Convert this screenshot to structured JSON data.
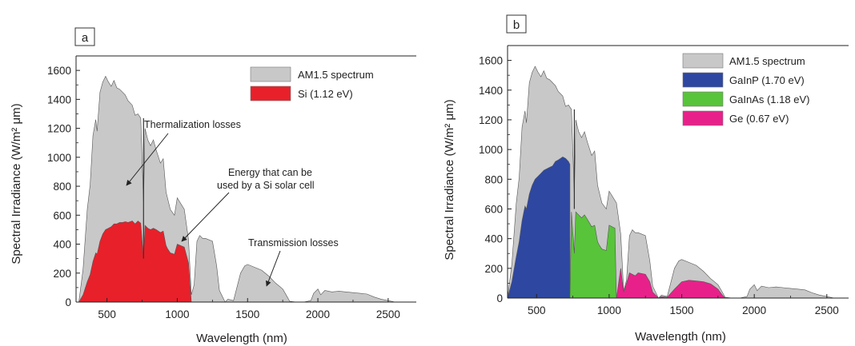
{
  "chart_data": [
    {
      "panel_label": "a",
      "type": "area",
      "xlabel": "Wavelength (nm)",
      "ylabel": "Spectral Irradiance (W/m² μm)",
      "xlim": [
        280,
        2700
      ],
      "ylim": [
        0,
        1700
      ],
      "x_ticks": [
        500,
        1000,
        1500,
        2000,
        2500
      ],
      "y_ticks": [
        0,
        200,
        400,
        600,
        800,
        1000,
        1200,
        1400,
        1600
      ],
      "legend_position": "top-right",
      "colors": {
        "spectrum": "#c8c8c8",
        "si": "#e8202a"
      },
      "series": [
        {
          "name": "AM1.5 spectrum",
          "x": [
            300,
            330,
            360,
            380,
            400,
            420,
            430,
            450,
            470,
            490,
            510,
            530,
            550,
            570,
            590,
            610,
            630,
            650,
            680,
            700,
            720,
            740,
            760,
            770,
            790,
            810,
            830,
            850,
            880,
            900,
            920,
            930,
            950,
            980,
            1000,
            1050,
            1080,
            1100,
            1120,
            1140,
            1160,
            1180,
            1200,
            1250,
            1280,
            1300,
            1340,
            1360,
            1400,
            1450,
            1480,
            1500,
            1550,
            1600,
            1650,
            1700,
            1750,
            1780,
            1800,
            1850,
            1900,
            1950,
            1970,
            2000,
            2020,
            2050,
            2100,
            2150,
            2200,
            2250,
            2300,
            2350,
            2400,
            2450,
            2500,
            2550
          ],
          "y": [
            0,
            230,
            640,
            810,
            1150,
            1260,
            1180,
            1450,
            1520,
            1560,
            1520,
            1490,
            1530,
            1480,
            1470,
            1450,
            1430,
            1390,
            1360,
            1290,
            1300,
            1270,
            690,
            1200,
            1120,
            1080,
            1120,
            1050,
            960,
            990,
            760,
            720,
            640,
            600,
            720,
            640,
            430,
            50,
            120,
            420,
            460,
            440,
            440,
            420,
            250,
            80,
            0,
            20,
            10,
            200,
            250,
            260,
            240,
            220,
            180,
            130,
            90,
            40,
            5,
            0,
            0,
            10,
            60,
            90,
            50,
            80,
            70,
            75,
            70,
            65,
            60,
            55,
            35,
            20,
            10,
            0
          ]
        },
        {
          "name": "Si (1.12 eV)",
          "x": [
            300,
            330,
            360,
            380,
            400,
            420,
            430,
            450,
            470,
            490,
            510,
            530,
            550,
            570,
            590,
            610,
            630,
            650,
            680,
            700,
            720,
            740,
            760,
            770,
            790,
            810,
            830,
            850,
            880,
            900,
            920,
            930,
            950,
            980,
            1000,
            1050,
            1080,
            1100
          ],
          "y": [
            0,
            50,
            140,
            190,
            280,
            340,
            330,
            420,
            470,
            500,
            510,
            520,
            540,
            540,
            550,
            550,
            555,
            550,
            560,
            540,
            560,
            545,
            300,
            530,
            510,
            500,
            510,
            500,
            480,
            490,
            390,
            370,
            340,
            330,
            400,
            380,
            270,
            0
          ]
        }
      ],
      "annotations": [
        {
          "text": "Thermalization losses"
        },
        {
          "text": "Energy that can be",
          "line2": "used by a Si solar cell"
        },
        {
          "text": "Transmission losses"
        }
      ]
    },
    {
      "panel_label": "b",
      "type": "area",
      "xlabel": "Wavelength (nm)",
      "ylabel": "Spectral Irradiance (W/m² μm)",
      "xlim": [
        300,
        2650
      ],
      "ylim": [
        0,
        1700
      ],
      "x_ticks": [
        500,
        1000,
        1500,
        2000,
        2500
      ],
      "y_ticks": [
        0,
        200,
        400,
        600,
        800,
        1000,
        1200,
        1400,
        1600
      ],
      "legend_position": "top-right",
      "colors": {
        "spectrum": "#c8c8c8",
        "gainp": "#2e47a0",
        "gainas": "#58c43a",
        "ge": "#e8218a"
      },
      "series": [
        {
          "name": "AM1.5 spectrum",
          "x": [
            300,
            330,
            360,
            380,
            400,
            420,
            430,
            450,
            470,
            490,
            510,
            530,
            550,
            570,
            590,
            610,
            630,
            650,
            680,
            700,
            720,
            740,
            760,
            770,
            790,
            810,
            830,
            850,
            880,
            900,
            920,
            930,
            950,
            980,
            1000,
            1050,
            1080,
            1100,
            1120,
            1140,
            1160,
            1180,
            1200,
            1250,
            1280,
            1300,
            1340,
            1360,
            1400,
            1450,
            1480,
            1500,
            1550,
            1600,
            1650,
            1700,
            1750,
            1780,
            1800,
            1850,
            1900,
            1950,
            1970,
            2000,
            2020,
            2050,
            2100,
            2150,
            2200,
            2250,
            2300,
            2350,
            2400,
            2450,
            2500,
            2550
          ],
          "y": [
            0,
            230,
            640,
            810,
            1150,
            1260,
            1180,
            1450,
            1520,
            1560,
            1520,
            1490,
            1530,
            1480,
            1470,
            1450,
            1430,
            1390,
            1360,
            1290,
            1300,
            1270,
            690,
            1200,
            1120,
            1080,
            1120,
            1050,
            960,
            990,
            760,
            720,
            640,
            600,
            720,
            640,
            430,
            50,
            120,
            420,
            460,
            440,
            440,
            420,
            250,
            80,
            0,
            20,
            10,
            200,
            250,
            260,
            240,
            220,
            180,
            130,
            90,
            40,
            5,
            0,
            0,
            10,
            60,
            90,
            50,
            80,
            70,
            75,
            70,
            65,
            60,
            55,
            35,
            20,
            10,
            0
          ]
        },
        {
          "name": "GaInP (1.70 eV)",
          "x": [
            300,
            330,
            360,
            380,
            400,
            420,
            430,
            450,
            470,
            490,
            510,
            530,
            550,
            570,
            590,
            610,
            630,
            650,
            680,
            700,
            720,
            730
          ],
          "y": [
            0,
            110,
            280,
            380,
            520,
            620,
            600,
            700,
            760,
            800,
            820,
            840,
            860,
            870,
            880,
            890,
            920,
            930,
            950,
            940,
            920,
            900
          ]
        },
        {
          "name": "GaInAs (1.18 eV)",
          "x": [
            730,
            740,
            760,
            770,
            790,
            810,
            830,
            850,
            880,
            900,
            920,
            930,
            950,
            980,
            1000,
            1040,
            1050
          ],
          "y": [
            0,
            580,
            300,
            580,
            560,
            540,
            560,
            530,
            480,
            490,
            380,
            360,
            330,
            320,
            490,
            470,
            0
          ]
        },
        {
          "name": "Ge (0.67 eV)",
          "x": [
            1050,
            1080,
            1100,
            1120,
            1140,
            1160,
            1180,
            1200,
            1250,
            1280,
            1300,
            1340,
            1360,
            1400,
            1450,
            1480,
            1500,
            1550,
            1600,
            1650,
            1700,
            1750,
            1780,
            1800
          ],
          "y": [
            0,
            200,
            40,
            100,
            170,
            160,
            150,
            170,
            160,
            110,
            40,
            0,
            10,
            5,
            60,
            90,
            110,
            120,
            115,
            110,
            95,
            60,
            20,
            0
          ]
        }
      ]
    }
  ]
}
